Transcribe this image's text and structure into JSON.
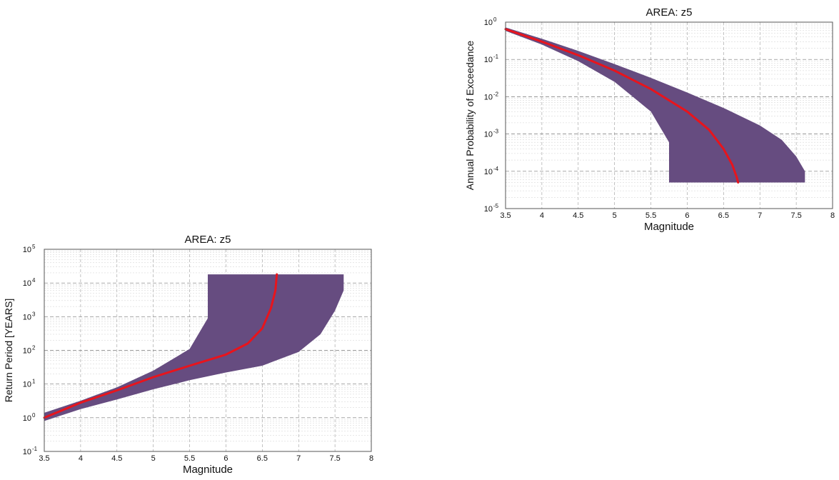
{
  "chart_data": [
    {
      "type": "area",
      "title": "AREA: z5",
      "xlabel": "Magnitude",
      "ylabel": "Annual Probability of Exceedance",
      "xlim": [
        3.5,
        8
      ],
      "ylim": [
        1e-05,
        1
      ],
      "yscale": "log",
      "xticks": [
        "3.5",
        "4",
        "4.5",
        "5",
        "5.5",
        "6",
        "6.5",
        "7",
        "7.5",
        "8"
      ],
      "yticks": [
        {
          "base": "10",
          "exp": "0"
        },
        {
          "base": "10",
          "exp": "-1"
        },
        {
          "base": "10",
          "exp": "-2"
        },
        {
          "base": "10",
          "exp": "-3"
        },
        {
          "base": "10",
          "exp": "-4"
        },
        {
          "base": "10",
          "exp": "-5"
        }
      ],
      "grid": true,
      "series": [
        {
          "role": "band",
          "color": "#664c80",
          "x": [
            3.5,
            4.0,
            4.5,
            5.0,
            5.5,
            5.75,
            5.75
          ],
          "lower": [
            0.58,
            0.25,
            0.09,
            0.025,
            0.004,
            0.0006,
            5e-05
          ],
          "x_upper": [
            3.5,
            4.0,
            4.5,
            5.0,
            5.5,
            6.0,
            6.5,
            7.0,
            7.3,
            7.5,
            7.62,
            7.62
          ],
          "upper": [
            0.72,
            0.36,
            0.17,
            0.075,
            0.032,
            0.013,
            0.005,
            0.0017,
            0.0007,
            0.00025,
            0.0001,
            5e-05
          ]
        },
        {
          "role": "line",
          "color": "#e8141c",
          "x": [
            3.5,
            4.0,
            4.5,
            5.0,
            5.5,
            6.0,
            6.3,
            6.5,
            6.62,
            6.68,
            6.7
          ],
          "y": [
            0.65,
            0.3,
            0.13,
            0.05,
            0.016,
            0.004,
            0.0013,
            0.0004,
            0.00015,
            7e-05,
            5e-05
          ]
        }
      ]
    },
    {
      "type": "area",
      "title": "AREA: z5",
      "xlabel": "Magnitude",
      "ylabel": "Return Period [YEARS]",
      "xlim": [
        3.5,
        8
      ],
      "ylim": [
        0.1,
        100000
      ],
      "yscale": "log",
      "xticks": [
        "3.5",
        "4",
        "4.5",
        "5",
        "5.5",
        "6",
        "6.5",
        "7",
        "7.5",
        "8"
      ],
      "yticks": [
        {
          "base": "10",
          "exp": "5"
        },
        {
          "base": "10",
          "exp": "4"
        },
        {
          "base": "10",
          "exp": "3"
        },
        {
          "base": "10",
          "exp": "2"
        },
        {
          "base": "10",
          "exp": "1"
        },
        {
          "base": "10",
          "exp": "0"
        },
        {
          "base": "10",
          "exp": "-1"
        }
      ],
      "grid": true,
      "series": [
        {
          "role": "band",
          "color": "#664c80",
          "x": [
            3.5,
            4.0,
            4.5,
            5.0,
            5.5,
            5.75,
            5.75
          ],
          "lower": [
            1.4,
            3.2,
            8,
            25,
            110,
            900,
            18000
          ],
          "x_upper": [
            3.5,
            4.0,
            4.5,
            5.0,
            5.5,
            6.0,
            6.5,
            7.0,
            7.3,
            7.5,
            7.62,
            7.62
          ],
          "upper": [
            0.8,
            1.8,
            3.5,
            7,
            13,
            22,
            35,
            90,
            300,
            1500,
            6000,
            18000
          ]
        },
        {
          "role": "line",
          "color": "#e8141c",
          "x": [
            3.5,
            4.0,
            4.5,
            5.0,
            5.5,
            6.0,
            6.3,
            6.5,
            6.62,
            6.68,
            6.7
          ],
          "y": [
            1.0,
            2.8,
            6.5,
            16,
            35,
            75,
            160,
            450,
            1800,
            6000,
            18000
          ]
        }
      ]
    }
  ]
}
